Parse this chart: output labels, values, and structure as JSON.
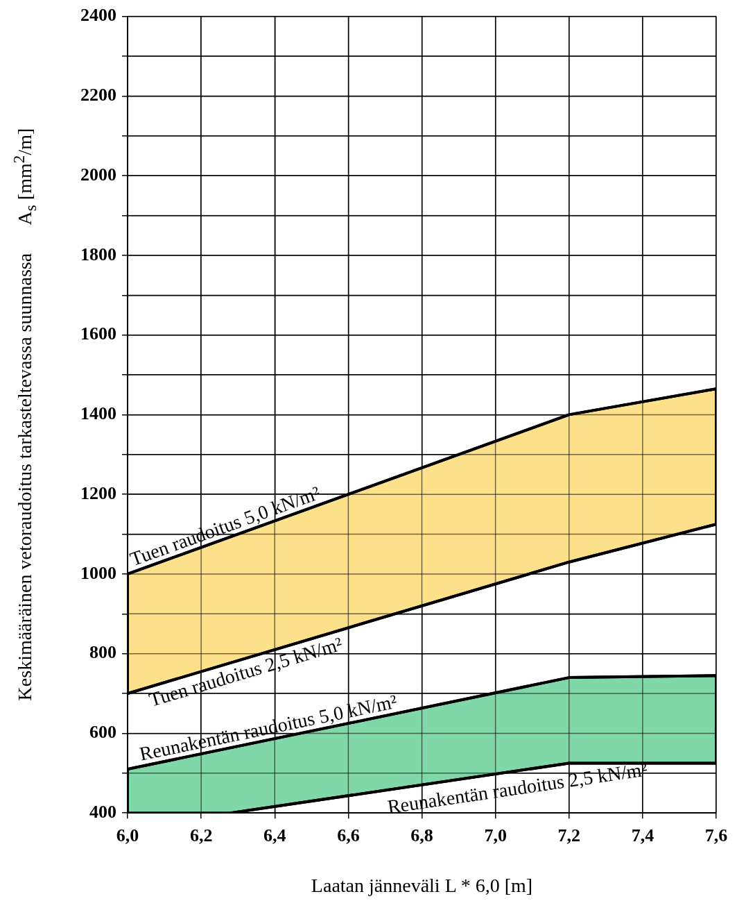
{
  "chart_data": {
    "type": "line",
    "xlabel": "Laatan jänneväli L * 6,0 [m]",
    "ylabel": "Keskimääräinen vetoraudoitus tarkasteltevassa suunnassa      A$_{s}$ [mm$^{2}$/m]",
    "xlim": [
      6.0,
      7.6
    ],
    "xticks": [
      {
        "value": 6.0,
        "label": "6,0"
      },
      {
        "value": 6.2,
        "label": "6,2"
      },
      {
        "value": 6.4,
        "label": "6,4"
      },
      {
        "value": 6.6,
        "label": "6,6"
      },
      {
        "value": 6.8,
        "label": "6,8"
      },
      {
        "value": 7.0,
        "label": "7,0"
      },
      {
        "value": 7.2,
        "label": "7,2"
      },
      {
        "value": 7.4,
        "label": "7,4"
      },
      {
        "value": 7.6,
        "label": "7,6"
      }
    ],
    "ylim": [
      400,
      2400
    ],
    "yticks": [
      400,
      {
        "value": 500,
        "label": null
      },
      600,
      {
        "value": 700,
        "label": null
      },
      800,
      {
        "value": 900,
        "label": null
      },
      1000,
      {
        "value": 1100,
        "label": null
      },
      1200,
      {
        "value": 1300,
        "label": null
      },
      1400,
      {
        "value": 1500,
        "label": null
      },
      1600,
      {
        "value": 1700,
        "label": null
      },
      1800,
      {
        "value": 1900,
        "label": null
      },
      2000,
      {
        "value": 2100,
        "label": null
      },
      2200,
      {
        "value": 2300,
        "label": null
      },
      2400
    ],
    "grid": true,
    "legend": false,
    "marker": "none",
    "line_style": "solid",
    "series": [
      {
        "type": "area",
        "name": "Tuen raudoitus 5,0 kN/m²",
        "color": "#fde08a",
        "x": [
          6.0,
          7.2,
          7.6
        ],
        "values": [
          1000,
          1400,
          1465
        ]
      },
      {
        "name": "Tuen raudoitus 2,5 kN/m²",
        "color": "#000000",
        "x": [
          6.0,
          7.2,
          7.6
        ],
        "values": [
          700,
          1030,
          1125
        ]
      },
      {
        "type": "area",
        "name": "Reunakentän raudoitus 5,0 kN/m²",
        "color": "#80d8a8",
        "x": [
          6.0,
          7.2,
          7.6
        ],
        "values": [
          510,
          740,
          745
        ]
      },
      {
        "name": "Reunakentän raudoitus 2,5 kN/m²",
        "color": "#000000",
        "x": [
          6.28,
          7.2,
          7.6
        ],
        "values": [
          400,
          525,
          525
        ]
      }
    ]
  }
}
